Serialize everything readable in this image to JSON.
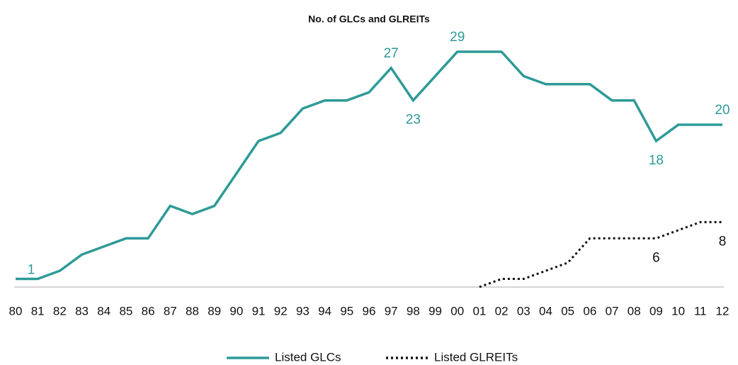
{
  "chart_data": {
    "type": "line",
    "title": "No. of GLCs and GLREITs",
    "categories": [
      "80",
      "81",
      "82",
      "83",
      "84",
      "85",
      "86",
      "87",
      "88",
      "89",
      "90",
      "91",
      "92",
      "93",
      "94",
      "95",
      "96",
      "97",
      "98",
      "99",
      "00",
      "01",
      "02",
      "03",
      "04",
      "05",
      "06",
      "07",
      "08",
      "09",
      "10",
      "11",
      "12"
    ],
    "ylim": [
      0,
      29
    ],
    "legend": "bottom",
    "series": [
      {
        "name": "Listed GLCs",
        "color": "#2e9a98",
        "style": "solid",
        "values": [
          1,
          1,
          2,
          4,
          5,
          6,
          6,
          10,
          9,
          10,
          14,
          18,
          19,
          22,
          23,
          23,
          24,
          27,
          23,
          26,
          29,
          29,
          29,
          26,
          25,
          25,
          25,
          23,
          23,
          18,
          20,
          20,
          20
        ],
        "value_labels": [
          "1",
          null,
          null,
          null,
          null,
          null,
          null,
          null,
          null,
          null,
          null,
          null,
          null,
          null,
          null,
          null,
          null,
          "27",
          "23",
          null,
          "29",
          null,
          null,
          null,
          null,
          null,
          null,
          null,
          null,
          "18",
          null,
          null,
          "20"
        ]
      },
      {
        "name": "Listed GLREITs",
        "color": "#111111",
        "style": "dotted",
        "values": [
          null,
          null,
          null,
          null,
          null,
          null,
          null,
          null,
          null,
          null,
          null,
          null,
          null,
          null,
          null,
          null,
          null,
          null,
          null,
          null,
          null,
          0,
          1,
          1,
          2,
          3,
          6,
          6,
          6,
          6,
          7,
          8,
          8
        ],
        "value_labels": [
          null,
          null,
          null,
          null,
          null,
          null,
          null,
          null,
          null,
          null,
          null,
          null,
          null,
          null,
          null,
          null,
          null,
          null,
          null,
          null,
          null,
          null,
          null,
          null,
          null,
          null,
          null,
          null,
          null,
          "6",
          null,
          null,
          "8"
        ]
      }
    ]
  }
}
